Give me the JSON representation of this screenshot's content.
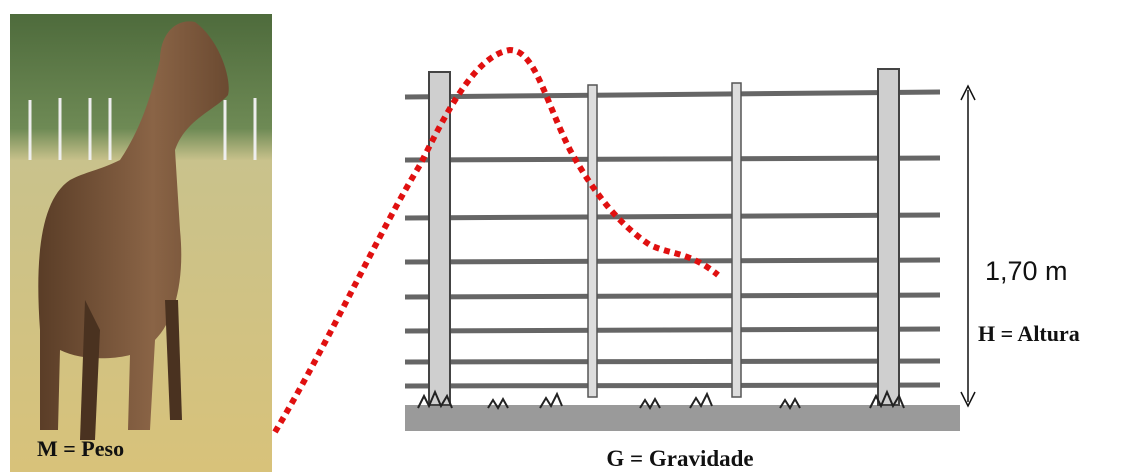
{
  "labels": {
    "mass": "M = Peso",
    "gravity": "G = Gravidade",
    "height_value": "1,70 m",
    "height": "H = Altura"
  }
}
